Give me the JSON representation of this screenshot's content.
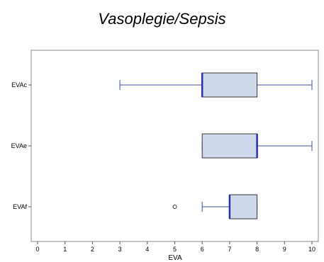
{
  "chart_data": {
    "type": "boxplot",
    "orientation": "horizontal",
    "title": "Vasoplegie/Sepsis",
    "xlabel": "EVA",
    "ylabel": "",
    "xlim": [
      0,
      10
    ],
    "xticks": [
      0,
      1,
      2,
      3,
      4,
      5,
      6,
      7,
      8,
      9,
      10
    ],
    "categories": [
      "EVAc",
      "EVAe",
      "EVAf"
    ],
    "boxes": [
      {
        "label": "EVAc",
        "whisker_low": 3,
        "q1": 6,
        "median": 6,
        "q3": 8,
        "whisker_high": 10,
        "outliers": []
      },
      {
        "label": "EVAe",
        "whisker_low": 6,
        "q1": 6,
        "median": 8,
        "q3": 8,
        "whisker_high": 10,
        "outliers": []
      },
      {
        "label": "EVAf",
        "whisker_low": 6,
        "q1": 7,
        "median": 7,
        "q3": 8,
        "whisker_high": 8,
        "outliers": [
          5
        ]
      }
    ],
    "grid": false,
    "colors": {
      "box_fill": "#cdd9ea",
      "box_edge": "#333333",
      "median": "#2b2fa3",
      "whisker": "#3b4fa6",
      "outlier": "#333333"
    }
  }
}
